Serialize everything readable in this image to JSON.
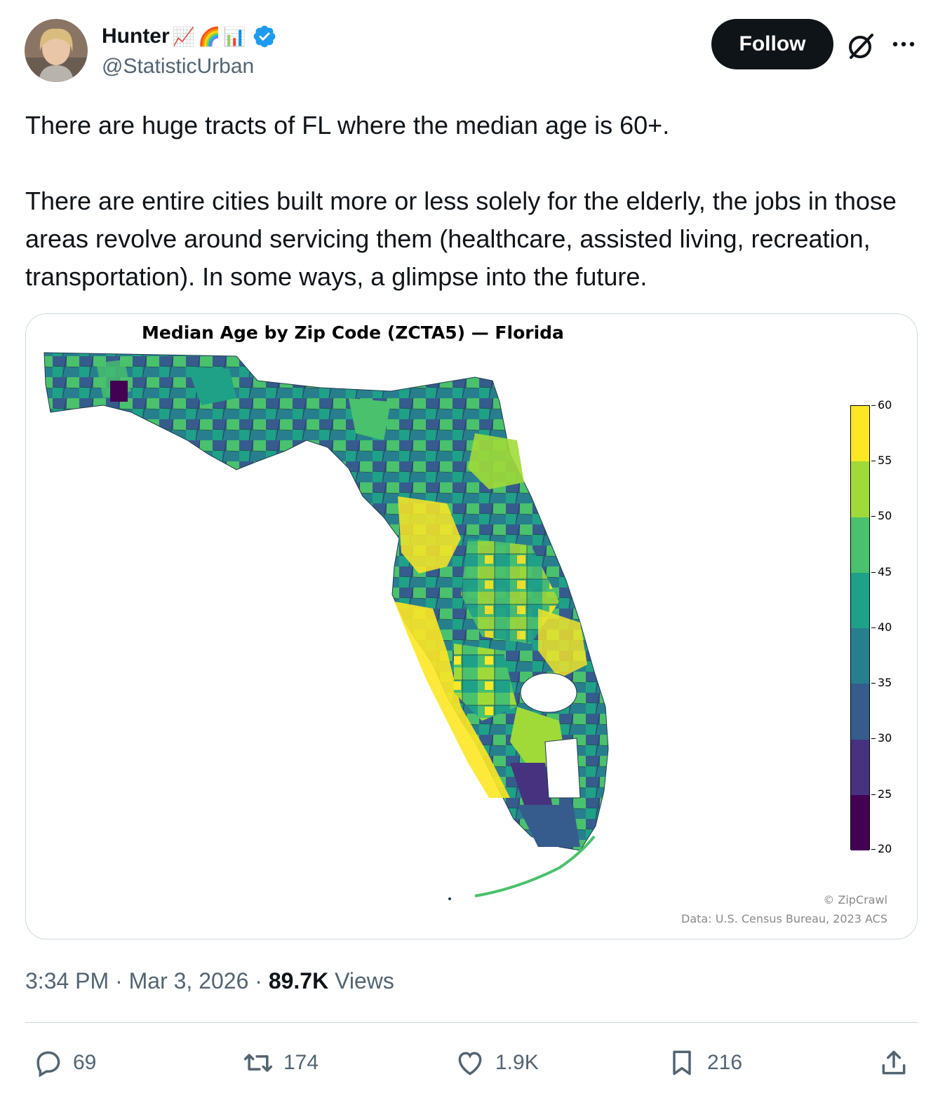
{
  "author": {
    "name": "Hunter",
    "name_emojis": [
      "📈",
      "🌈",
      "📊"
    ],
    "verified": true,
    "handle": "@StatisticUrban"
  },
  "header": {
    "follow_label": "Follow"
  },
  "tweet": {
    "paragraph_1": "There are huge tracts of FL where the median age is 60+.",
    "paragraph_2": "There are entire cities built more or less solely for the elderly, the jobs in those areas revolve around servicing them (healthcare, assisted living, recreation, transportation). In some ways, a glimpse into the future."
  },
  "media": {
    "map_title": "Median Age by Zip Code (ZCTA5) — Florida",
    "colorbar_ticks": [
      "60",
      "55",
      "50",
      "45",
      "40",
      "35",
      "30",
      "25",
      "20"
    ],
    "colorbar_colors": [
      "#fde725",
      "#a0da39",
      "#4ac16d",
      "#1fa187",
      "#277f8e",
      "#365c8d",
      "#46327e",
      "#440154"
    ],
    "credit": "© ZipCrawl",
    "source": "Data: U.S. Census Bureau, 2023 ACS"
  },
  "meta": {
    "time": "3:34 PM",
    "separator": "·",
    "date": "Mar 3, 2026",
    "views_count": "89.7K",
    "views_label": "Views"
  },
  "actions": {
    "replies": "69",
    "reposts": "174",
    "likes": "1.9K",
    "bookmarks": "216"
  },
  "colors": {
    "text": "#0f1419",
    "secondary": "#536471",
    "border": "#cfd9de",
    "verified": "#1d9bf0"
  }
}
